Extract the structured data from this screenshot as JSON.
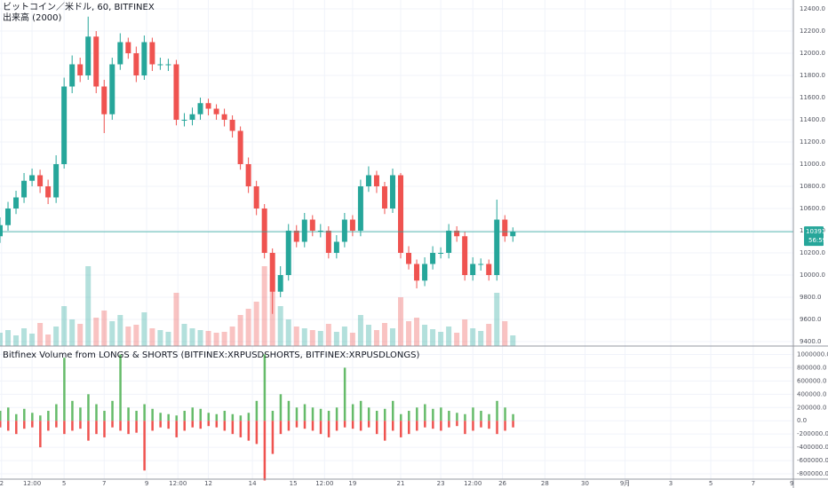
{
  "chart_data": {
    "type": "candlestick",
    "title": "ビットコイン／米ドル, 60, BITFINEX",
    "subtitle": "出来高 (2000)",
    "up_color": "#26a69a",
    "down_color": "#ef5350",
    "grid": true,
    "xlim": [
      0,
      99
    ],
    "xticks": [
      {
        "value": 0.2,
        "label": "2"
      },
      {
        "value": 4,
        "label": "12:00"
      },
      {
        "value": 8,
        "label": "5"
      },
      {
        "value": 13,
        "label": "7"
      },
      {
        "value": 18.3,
        "label": "9"
      },
      {
        "value": 22.2,
        "label": "12:00"
      },
      {
        "value": 26,
        "label": "12"
      },
      {
        "value": 31.5,
        "label": "14"
      },
      {
        "value": 36.6,
        "label": "15"
      },
      {
        "value": 40.5,
        "label": "12:00"
      },
      {
        "value": 44,
        "label": "19"
      },
      {
        "value": 50,
        "label": "21"
      },
      {
        "value": 55,
        "label": "23"
      },
      {
        "value": 59,
        "label": "12:00"
      },
      {
        "value": 62.7,
        "label": "26"
      },
      {
        "value": 68,
        "label": "28"
      },
      {
        "value": 73,
        "label": "30"
      },
      {
        "value": 78,
        "label": "9月"
      },
      {
        "value": 83.7,
        "label": "3"
      },
      {
        "value": 88.7,
        "label": "5"
      },
      {
        "value": 94,
        "label": "7"
      },
      {
        "value": 98.8,
        "label": "9"
      }
    ],
    "ylim": [
      9360,
      12480
    ],
    "yticks": [
      {
        "value": 9400,
        "label": "9400.0"
      },
      {
        "value": 9600,
        "label": "9600.0"
      },
      {
        "value": 9800,
        "label": "9800.0"
      },
      {
        "value": 10000,
        "label": "10000.0"
      },
      {
        "value": 10200,
        "label": "10200.0"
      },
      {
        "value": 10400,
        "label": "10400.0"
      },
      {
        "value": 10600,
        "label": "10600.0"
      },
      {
        "value": 10800,
        "label": "10800.0"
      },
      {
        "value": 11000,
        "label": "11000.0"
      },
      {
        "value": 11200,
        "label": "11200.0"
      },
      {
        "value": 11400,
        "label": "11400.0"
      },
      {
        "value": 11600,
        "label": "11600.0"
      },
      {
        "value": 11800,
        "label": "11800.0"
      },
      {
        "value": 12000,
        "label": "12000.0"
      },
      {
        "value": 12200,
        "label": "12200.0"
      },
      {
        "value": 12400,
        "label": "12400.0"
      }
    ],
    "open": [
      10350,
      10450,
      10600,
      10700,
      10850,
      10900,
      10800,
      10700,
      11000,
      11700,
      11900,
      11800,
      12150,
      11700,
      11450,
      11900,
      12100,
      12000,
      11800,
      12100,
      11900,
      11900,
      11900,
      11400,
      11400,
      11450,
      11550,
      11500,
      11450,
      11400,
      11300,
      11000,
      10800,
      10600,
      10200,
      9850,
      10000,
      10400,
      10300,
      10500,
      10400,
      10400,
      10200,
      10300,
      10500,
      10400,
      10800,
      10900,
      10800,
      10600,
      10900,
      10200,
      10100,
      9950,
      10100,
      10200,
      10200,
      10400,
      10350,
      10000,
      10100,
      10100,
      10000,
      10500,
      10350
    ],
    "high": [
      10520,
      10660,
      10760,
      10920,
      10960,
      10950,
      10860,
      11080,
      11780,
      11980,
      11960,
      12330,
      12200,
      11760,
      11960,
      12180,
      12140,
      12060,
      12160,
      12140,
      11960,
      11950,
      11940,
      11460,
      11510,
      11600,
      11590,
      11540,
      11500,
      11440,
      11340,
      11060,
      10850,
      10640,
      10240,
      10080,
      10460,
      10450,
      10560,
      10540,
      10460,
      10440,
      10360,
      10560,
      10540,
      10860,
      10980,
      10940,
      10840,
      10960,
      10920,
      10260,
      10140,
      10160,
      10260,
      10250,
      10460,
      10440,
      10390,
      10160,
      10150,
      10140,
      10680,
      10540,
      10430
    ],
    "low": [
      10290,
      10400,
      10550,
      10650,
      10800,
      10740,
      10640,
      10650,
      10960,
      11640,
      11740,
      11760,
      11640,
      11280,
      11400,
      11850,
      11950,
      11740,
      11760,
      11840,
      11850,
      11840,
      11350,
      11340,
      11350,
      11400,
      11440,
      11400,
      11340,
      11240,
      10950,
      10740,
      10540,
      10150,
      9650,
      9800,
      9950,
      10250,
      10250,
      10350,
      10340,
      10150,
      10150,
      10250,
      10350,
      10350,
      10750,
      10740,
      10550,
      10560,
      10150,
      10050,
      9880,
      9900,
      10050,
      10150,
      10150,
      10300,
      9950,
      9950,
      10040,
      9950,
      9950,
      10300,
      10300
    ],
    "close": [
      10450,
      10600,
      10700,
      10850,
      10900,
      10800,
      10700,
      11000,
      11700,
      11900,
      11800,
      12150,
      11700,
      11450,
      11900,
      12100,
      12000,
      11800,
      12100,
      11900,
      11900,
      11900,
      11400,
      11400,
      11450,
      11550,
      11500,
      11450,
      11400,
      11300,
      11000,
      10800,
      10600,
      10200,
      9850,
      10000,
      10400,
      10300,
      10500,
      10400,
      10400,
      10200,
      10300,
      10500,
      10400,
      10800,
      10900,
      10800,
      10600,
      10900,
      10200,
      10100,
      9950,
      10100,
      10200,
      10200,
      10400,
      10350,
      10000,
      10100,
      10100,
      10000,
      10500,
      10350,
      10391
    ],
    "volume": [
      1500,
      1800,
      1200,
      2000,
      1400,
      2600,
      1300,
      2200,
      4500,
      3000,
      2500,
      9000,
      3200,
      4000,
      2800,
      3500,
      2200,
      2400,
      3800,
      2000,
      1800,
      1600,
      6000,
      2500,
      2000,
      1800,
      1700,
      1500,
      1600,
      2200,
      3500,
      4200,
      5000,
      9000,
      8000,
      4500,
      3000,
      2200,
      2000,
      1800,
      1700,
      2500,
      1600,
      2200,
      1500,
      3500,
      2400,
      1800,
      2600,
      2000,
      5500,
      2800,
      3200,
      2400,
      1900,
      1600,
      2200,
      1500,
      3000,
      2000,
      1700,
      2500,
      6000,
      2800,
      1200
    ],
    "price_label": "10391.0",
    "countdown": "56:59",
    "lower": {
      "type": "bar",
      "title": "Bitfinex Volume from LONGS & SHORTS (BITFINEX:XRPUSDSHORTS, BITFINEX:XRPUSDLONGS)",
      "ylim": [
        -880000,
        1100000
      ],
      "yticks": [
        {
          "value": 1000000,
          "label": "1000000.0"
        },
        {
          "value": 800000,
          "label": "800000.0"
        },
        {
          "value": 600000,
          "label": "600000.0"
        },
        {
          "value": 400000,
          "label": "400000.0"
        },
        {
          "value": 200000,
          "label": "200000.0"
        },
        {
          "value": 0,
          "label": "0.0"
        },
        {
          "value": -200000,
          "label": "-200000.0"
        },
        {
          "value": -400000,
          "label": "-400000.0"
        },
        {
          "value": -600000,
          "label": "-600000.0"
        },
        {
          "value": -800000,
          "label": "-800000.0"
        }
      ],
      "series": [
        {
          "color": "#66bb6a",
          "values": [
            150000,
            200000,
            100000,
            180000,
            120000,
            80000,
            150000,
            250000,
            950000,
            300000,
            200000,
            400000,
            250000,
            150000,
            300000,
            1000000,
            200000,
            150000,
            250000,
            180000,
            120000,
            100000,
            80000,
            150000,
            200000,
            180000,
            120000,
            100000,
            150000,
            100000,
            80000,
            120000,
            300000,
            1000000,
            150000,
            400000,
            300000,
            200000,
            250000,
            200000,
            180000,
            150000,
            200000,
            800000,
            250000,
            300000,
            200000,
            150000,
            180000,
            300000,
            100000,
            150000,
            200000,
            250000,
            180000,
            200000,
            150000,
            120000,
            100000,
            200000,
            150000,
            100000,
            300000,
            200000,
            100000
          ]
        },
        {
          "color": "#ef5350",
          "values": [
            -100000,
            -150000,
            -200000,
            -120000,
            -100000,
            -400000,
            -150000,
            -100000,
            -200000,
            -150000,
            -120000,
            -300000,
            -200000,
            -250000,
            -100000,
            -150000,
            -200000,
            -180000,
            -750000,
            -150000,
            -100000,
            -120000,
            -250000,
            -150000,
            -100000,
            -120000,
            -80000,
            -100000,
            -150000,
            -200000,
            -250000,
            -300000,
            -350000,
            -900000,
            -500000,
            -200000,
            -150000,
            -100000,
            -120000,
            -150000,
            -200000,
            -250000,
            -150000,
            -100000,
            -120000,
            -150000,
            -100000,
            -200000,
            -300000,
            -150000,
            -250000,
            -200000,
            -150000,
            -100000,
            -120000,
            -150000,
            -100000,
            -80000,
            -200000,
            -150000,
            -100000,
            -120000,
            -200000,
            -150000,
            -100000
          ]
        }
      ]
    }
  }
}
